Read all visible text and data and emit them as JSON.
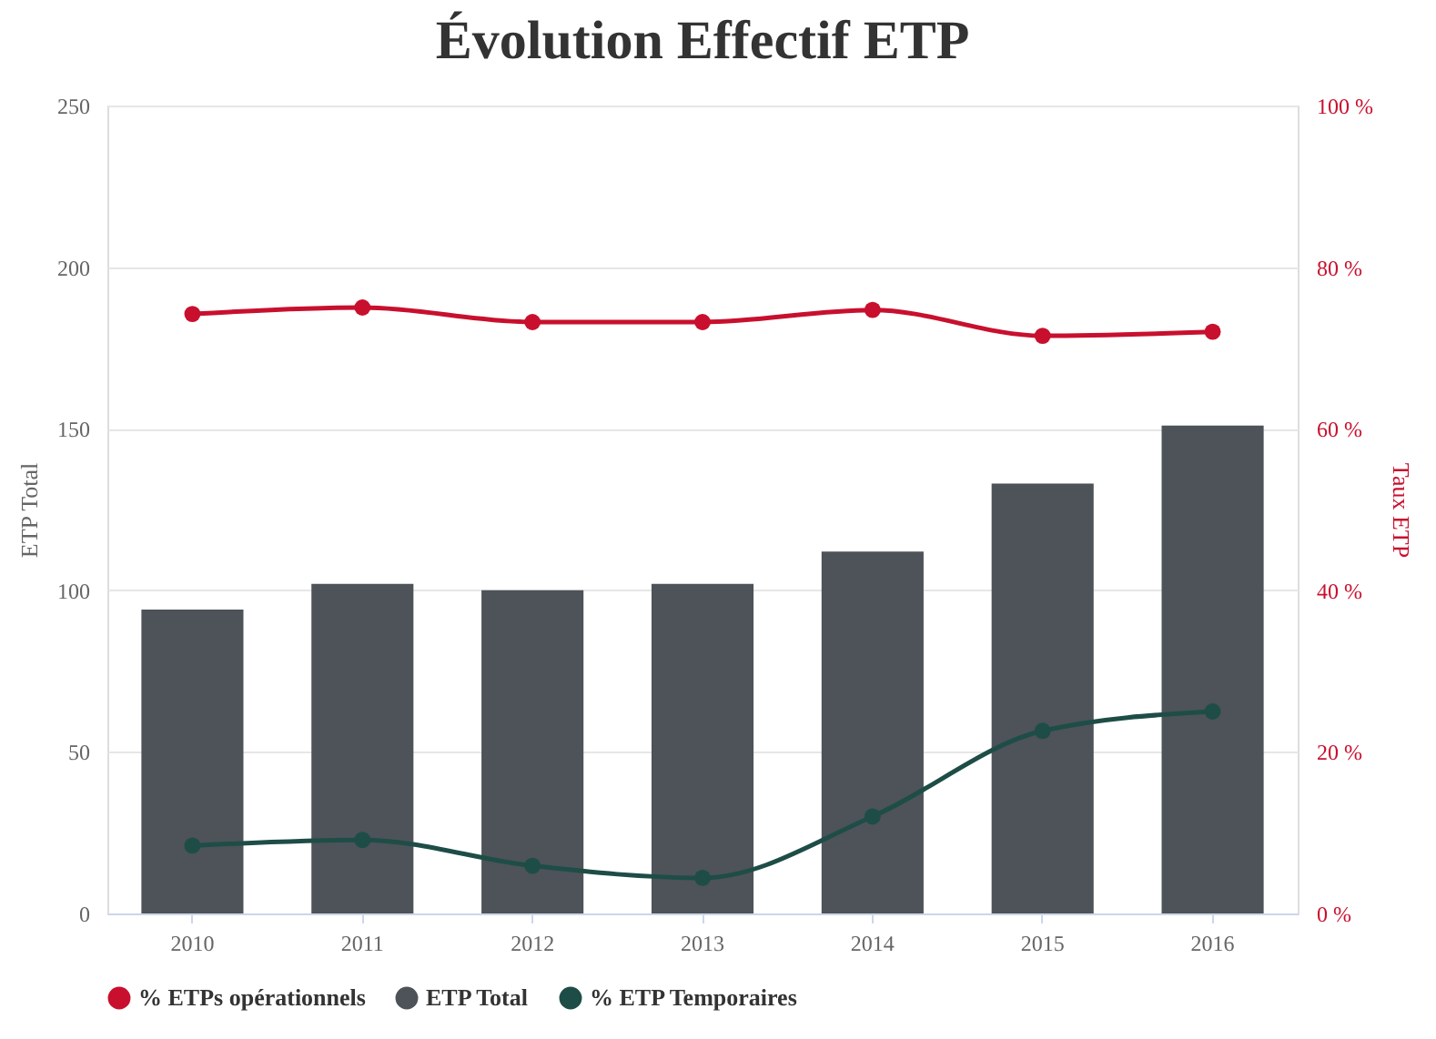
{
  "chart_data": {
    "type": "bar",
    "title": "Évolution Effectif ETP",
    "ylabel": "ETP Total",
    "y2label": "Taux ETP",
    "categories": [
      "2010",
      "2011",
      "2012",
      "2013",
      "2014",
      "2015",
      "2016"
    ],
    "series": [
      {
        "name": "% ETPs opérationnels",
        "type": "line",
        "axis": "y2",
        "color": "#c8102e",
        "values": [
          74.2,
          75.0,
          73.2,
          73.2,
          74.7,
          71.5,
          72.0
        ]
      },
      {
        "name": "ETP Total",
        "color": "#4d5358",
        "values": [
          94,
          102,
          100,
          102,
          112,
          133,
          151
        ]
      },
      {
        "name": "% ETP Temporaires",
        "type": "line",
        "axis": "y2",
        "color": "#1e4d47",
        "values": [
          8.4,
          9.1,
          5.9,
          4.4,
          12.0,
          22.6,
          25.0
        ]
      }
    ],
    "ylim": [
      0,
      250
    ],
    "yticks": [
      0,
      50,
      100,
      150,
      200,
      250
    ],
    "y2lim": [
      0,
      100
    ],
    "y2ticks": [
      {
        "value": 0,
        "label": "0 %"
      },
      {
        "value": 20,
        "label": "20 %"
      },
      {
        "value": 40,
        "label": "40 %"
      },
      {
        "value": 60,
        "label": "60 %"
      },
      {
        "value": 80,
        "label": "80 %"
      },
      {
        "value": 100,
        "label": "100 %"
      }
    ],
    "grid": "y",
    "legend": "bottom",
    "marker": "circle",
    "line_style": "solid"
  }
}
